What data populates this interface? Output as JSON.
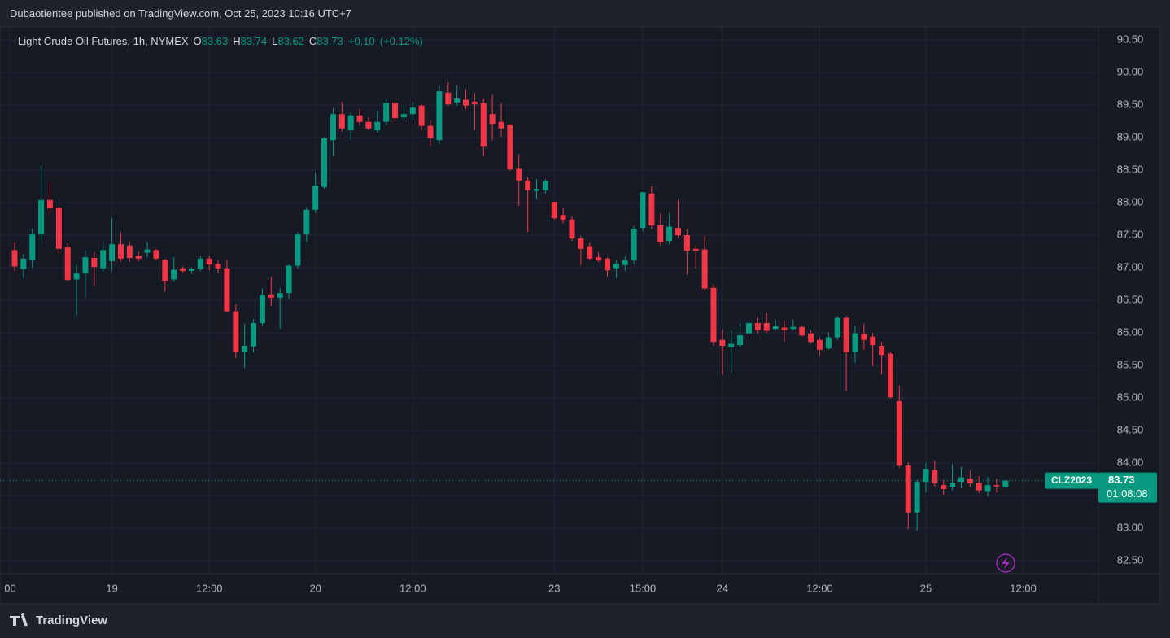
{
  "header": {
    "text": "Dubaotientee published on TradingView.com, Oct 25, 2023 10:16 UTC+7"
  },
  "footer": {
    "brand": "TradingView"
  },
  "chart_data": {
    "type": "candlestick",
    "title": "Light Crude Oil Futures, 1h, NYMEX",
    "ohlc_legend": [
      {
        "key": "O",
        "value": 83.63
      },
      {
        "key": "H",
        "value": 83.74
      },
      {
        "key": "L",
        "value": 83.62
      },
      {
        "key": "C",
        "value": 83.73
      }
    ],
    "change": {
      "value": 0.1,
      "label": "+0.10"
    },
    "change_percent": {
      "value": 0.12,
      "label": "(+0.12%)"
    },
    "up_color": "#089981",
    "down_color": "#f23645",
    "grid": true,
    "open": [
      87.27,
      86.98,
      87.11,
      87.51,
      88.04,
      87.92,
      87.31,
      86.82,
      86.91,
      87.15,
      86.99,
      87.1,
      87.36,
      87.34,
      87.18,
      87.23,
      87.27,
      87.12,
      86.82,
      86.99,
      86.95,
      86.98,
      87.14,
      87.06,
      86.99,
      86.33,
      85.71,
      85.79,
      86.15,
      86.59,
      86.54,
      86.61,
      87.03,
      87.51,
      87.89,
      88.24,
      88.96,
      89.36,
      89.11,
      89.34,
      89.24,
      89.11,
      89.24,
      89.53,
      89.31,
      89.36,
      89.49,
      89.18,
      88.96,
      89.69,
      89.54,
      89.58,
      89.55,
      89.53,
      89.36,
      89.24,
      89.2,
      88.52,
      88.34,
      88.18,
      88.19,
      88.01,
      87.81,
      87.74,
      87.45,
      87.33,
      87.16,
      87.14,
      86.99,
      87.04,
      87.11,
      87.61,
      88.14,
      87.65,
      87.41,
      87.61,
      87.5,
      87.29,
      87.28,
      86.69,
      85.89,
      85.78,
      85.81,
      85.99,
      86.15,
      86.15,
      86.06,
      86.08,
      86.06,
      86.09,
      85.99,
      85.89,
      85.76,
      85.93,
      86.23,
      85.71,
      85.98,
      85.94,
      85.8,
      85.68,
      84.95,
      83.96,
      83.24,
      83.71,
      83.89,
      83.66,
      83.63,
      83.71,
      83.76,
      83.69,
      83.57,
      83.66,
      83.63
    ],
    "high": [
      87.39,
      87.21,
      87.6,
      88.58,
      88.31,
      87.93,
      87.39,
      87.04,
      87.26,
      87.24,
      87.41,
      87.76,
      87.54,
      87.4,
      87.25,
      87.4,
      87.29,
      87.14,
      87.16,
      87.02,
      87.0,
      87.18,
      87.19,
      87.11,
      87.11,
      86.44,
      86.14,
      86.21,
      86.68,
      86.86,
      86.69,
      87.05,
      87.54,
      87.93,
      88.46,
      89.01,
      89.45,
      89.55,
      89.39,
      89.44,
      89.31,
      89.41,
      89.59,
      89.56,
      89.49,
      89.54,
      89.51,
      89.26,
      89.8,
      89.85,
      89.8,
      89.74,
      89.68,
      89.59,
      89.66,
      89.53,
      89.21,
      88.74,
      88.39,
      88.36,
      88.36,
      88.01,
      87.91,
      87.79,
      87.49,
      87.39,
      87.24,
      87.16,
      87.11,
      87.18,
      87.64,
      88.16,
      88.25,
      87.84,
      87.84,
      88.04,
      87.59,
      87.34,
      87.49,
      86.74,
      86.05,
      86.03,
      86.15,
      86.2,
      86.24,
      86.3,
      86.2,
      86.19,
      86.2,
      86.11,
      86.04,
      85.93,
      86.01,
      86.26,
      86.26,
      86.11,
      86.14,
      86.0,
      85.86,
      85.71,
      85.19,
      84.01,
      83.74,
      84.0,
      84.04,
      83.74,
      83.98,
      83.94,
      83.89,
      83.8,
      83.79,
      83.76,
      83.74
    ],
    "low": [
      86.95,
      86.84,
      87.0,
      87.36,
      87.84,
      87.22,
      86.8,
      86.27,
      86.52,
      86.71,
      86.94,
      86.95,
      87.09,
      87.09,
      87.1,
      87.16,
      87.11,
      86.64,
      86.79,
      86.92,
      86.9,
      86.95,
      86.96,
      86.91,
      86.31,
      85.61,
      85.46,
      85.7,
      86.11,
      86.41,
      86.06,
      86.51,
      86.99,
      87.4,
      87.84,
      88.21,
      88.71,
      89.09,
      88.96,
      89.19,
      89.11,
      89.08,
      89.19,
      89.24,
      89.26,
      89.26,
      89.11,
      88.86,
      88.9,
      89.49,
      89.49,
      89.44,
      89.11,
      88.71,
      88.96,
      89.01,
      88.49,
      87.95,
      87.55,
      88.05,
      88.14,
      87.74,
      87.68,
      87.41,
      87.04,
      87.11,
      87.09,
      86.86,
      86.84,
      86.95,
      87.06,
      87.56,
      87.59,
      87.34,
      87.36,
      87.46,
      86.89,
      86.99,
      86.66,
      85.8,
      85.36,
      85.4,
      85.78,
      85.96,
      85.99,
      86.0,
      86.03,
      85.86,
      86.04,
      85.94,
      85.84,
      85.65,
      85.74,
      85.89,
      85.11,
      85.54,
      85.74,
      85.49,
      85.36,
      84.99,
      83.93,
      82.99,
      82.96,
      83.55,
      83.64,
      83.51,
      83.58,
      83.61,
      83.64,
      83.54,
      83.49,
      83.55,
      83.62
    ],
    "close": [
      87.02,
      87.14,
      87.51,
      88.04,
      87.91,
      87.29,
      86.81,
      86.91,
      87.16,
      87.01,
      87.27,
      87.36,
      87.14,
      87.15,
      87.14,
      87.28,
      87.14,
      86.8,
      86.97,
      86.95,
      86.98,
      87.14,
      87.05,
      86.99,
      86.33,
      85.71,
      85.8,
      86.15,
      86.58,
      86.54,
      86.61,
      87.03,
      87.51,
      87.89,
      88.26,
      88.99,
      89.36,
      89.14,
      89.34,
      89.24,
      89.14,
      89.24,
      89.53,
      89.3,
      89.36,
      89.46,
      89.18,
      88.99,
      89.71,
      89.51,
      89.6,
      89.49,
      89.51,
      88.86,
      89.21,
      89.14,
      88.51,
      88.34,
      88.19,
      88.21,
      88.33,
      87.76,
      87.74,
      87.45,
      87.29,
      87.14,
      87.11,
      86.96,
      87.06,
      87.11,
      87.6,
      88.16,
      87.65,
      87.4,
      87.63,
      87.5,
      87.26,
      87.26,
      86.68,
      85.86,
      85.8,
      85.83,
      85.96,
      86.15,
      86.04,
      86.03,
      86.1,
      86.04,
      86.09,
      85.96,
      85.86,
      85.74,
      85.93,
      86.23,
      85.7,
      85.99,
      85.89,
      85.81,
      85.66,
      85.01,
      83.96,
      83.24,
      83.71,
      83.91,
      83.69,
      83.6,
      83.7,
      83.78,
      83.69,
      83.58,
      83.66,
      83.64,
      83.73
    ],
    "xlim": [
      -0.55,
      122.5
    ],
    "xticks": [
      {
        "value": -0.5,
        "label": "00"
      },
      {
        "value": 11,
        "label": "19"
      },
      {
        "value": 22,
        "label": "12:00"
      },
      {
        "value": 34,
        "label": "20"
      },
      {
        "value": 45,
        "label": "12:00"
      },
      {
        "value": 61,
        "label": "23"
      },
      {
        "value": 71,
        "label": "15:00"
      },
      {
        "value": 80,
        "label": "24"
      },
      {
        "value": 91,
        "label": "12:00"
      },
      {
        "value": 103,
        "label": "25"
      },
      {
        "value": 114,
        "label": "12:00"
      }
    ],
    "ylim": [
      82.3,
      90.7
    ],
    "yticks": [
      {
        "value": 82.5,
        "label": "82.50"
      },
      {
        "value": 83,
        "label": "83.00"
      },
      {
        "value": 83.5,
        "label": "83.50"
      },
      {
        "value": 84,
        "label": "84.00"
      },
      {
        "value": 84.5,
        "label": "84.50"
      },
      {
        "value": 85,
        "label": "85.00"
      },
      {
        "value": 85.5,
        "label": "85.50"
      },
      {
        "value": 86,
        "label": "86.00"
      },
      {
        "value": 86.5,
        "label": "86.50"
      },
      {
        "value": 87,
        "label": "87.00"
      },
      {
        "value": 87.5,
        "label": "87.50"
      },
      {
        "value": 88,
        "label": "88.00"
      },
      {
        "value": 88.5,
        "label": "88.50"
      },
      {
        "value": 89,
        "label": "89.00"
      },
      {
        "value": 89.5,
        "label": "89.50"
      },
      {
        "value": 90,
        "label": "90.00"
      },
      {
        "value": 90.5,
        "label": "90.50"
      }
    ],
    "last_price": {
      "symbol": "CLZ2023",
      "value": 83.73,
      "countdown": "01:08:08"
    }
  }
}
